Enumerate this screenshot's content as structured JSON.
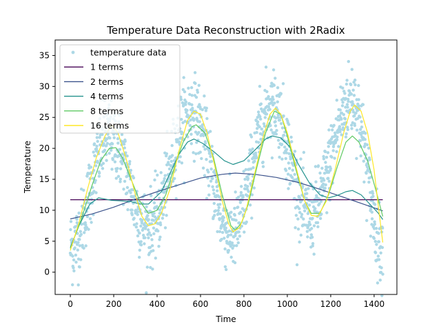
{
  "chart_data": {
    "type": "line",
    "title": "Temperature Data Reconstruction with 2Radix",
    "xlabel": "Time",
    "ylabel": "Temperature",
    "xlim": [
      -70,
      1505
    ],
    "ylim": [
      -3.6,
      37.5
    ],
    "xticks": [
      0,
      200,
      400,
      600,
      800,
      1000,
      1200,
      1400
    ],
    "yticks": [
      0,
      5,
      10,
      15,
      20,
      25,
      30,
      35
    ],
    "grid": false,
    "legend_position": "upper-left",
    "scatter": {
      "name": "temperature data",
      "color": "#add8e6",
      "x_range": [
        0,
        1440
      ],
      "points_approx": 1441,
      "shape": "4-cycle seasonal wave with noise",
      "trend_anchor_points": [
        {
          "x": 0,
          "y": 4
        },
        {
          "x": 180,
          "y": 22
        },
        {
          "x": 360,
          "y": 7
        },
        {
          "x": 560,
          "y": 26
        },
        {
          "x": 740,
          "y": 6
        },
        {
          "x": 930,
          "y": 27
        },
        {
          "x": 1100,
          "y": 9
        },
        {
          "x": 1300,
          "y": 28
        },
        {
          "x": 1440,
          "y": 4
        }
      ]
    },
    "series": [
      {
        "name": "1 terms",
        "color": "#440154",
        "points": [
          [
            0,
            11.7
          ],
          [
            1440,
            11.7
          ]
        ]
      },
      {
        "name": "2 terms",
        "color": "#3b528b",
        "points": [
          [
            0,
            8.6
          ],
          [
            100,
            9.4
          ],
          [
            200,
            10.5
          ],
          [
            300,
            11.8
          ],
          [
            400,
            13.0
          ],
          [
            500,
            14.1
          ],
          [
            600,
            15.2
          ],
          [
            700,
            15.8
          ],
          [
            760,
            16.0
          ],
          [
            850,
            15.8
          ],
          [
            950,
            15.3
          ],
          [
            1050,
            14.5
          ],
          [
            1150,
            13.4
          ],
          [
            1250,
            12.2
          ],
          [
            1350,
            11.0
          ],
          [
            1440,
            9.9
          ]
        ]
      },
      {
        "name": "4 terms",
        "color": "#21918c",
        "points": [
          [
            0,
            4.0
          ],
          [
            40,
            7.5
          ],
          [
            90,
            11.0
          ],
          [
            130,
            12.0
          ],
          [
            160,
            11.8
          ],
          [
            190,
            11.6
          ],
          [
            240,
            11.5
          ],
          [
            280,
            11.4
          ],
          [
            320,
            11.0
          ],
          [
            360,
            11.0
          ],
          [
            420,
            13.0
          ],
          [
            460,
            16.0
          ],
          [
            500,
            19.0
          ],
          [
            540,
            21.0
          ],
          [
            570,
            21.5
          ],
          [
            610,
            20.8
          ],
          [
            660,
            19.5
          ],
          [
            710,
            18.0
          ],
          [
            750,
            17.4
          ],
          [
            800,
            18.0
          ],
          [
            850,
            19.7
          ],
          [
            900,
            21.5
          ],
          [
            930,
            22.0
          ],
          [
            970,
            21.7
          ],
          [
            1010,
            20.3
          ],
          [
            1050,
            17.5
          ],
          [
            1100,
            14.5
          ],
          [
            1150,
            12.5
          ],
          [
            1190,
            12.0
          ],
          [
            1230,
            12.4
          ],
          [
            1270,
            13.0
          ],
          [
            1300,
            13.2
          ],
          [
            1340,
            12.5
          ],
          [
            1380,
            11.0
          ],
          [
            1420,
            9.5
          ],
          [
            1440,
            8.5
          ]
        ]
      },
      {
        "name": "8 terms",
        "color": "#5ec962",
        "points": [
          [
            0,
            3.8
          ],
          [
            50,
            8.5
          ],
          [
            100,
            14.0
          ],
          [
            140,
            18.0
          ],
          [
            180,
            20.0
          ],
          [
            210,
            20.1
          ],
          [
            240,
            18.5
          ],
          [
            280,
            15.0
          ],
          [
            320,
            11.5
          ],
          [
            360,
            9.5
          ],
          [
            400,
            10.0
          ],
          [
            440,
            12.5
          ],
          [
            480,
            17.0
          ],
          [
            520,
            21.0
          ],
          [
            560,
            23.5
          ],
          [
            580,
            23.8
          ],
          [
            620,
            22.5
          ],
          [
            660,
            18.5
          ],
          [
            700,
            12.5
          ],
          [
            740,
            7.5
          ],
          [
            760,
            6.8
          ],
          [
            790,
            8.0
          ],
          [
            820,
            11.0
          ],
          [
            860,
            17.0
          ],
          [
            900,
            22.5
          ],
          [
            940,
            26.0
          ],
          [
            970,
            25.5
          ],
          [
            1000,
            22.0
          ],
          [
            1040,
            16.5
          ],
          [
            1080,
            11.5
          ],
          [
            1110,
            9.5
          ],
          [
            1150,
            9.5
          ],
          [
            1190,
            12.5
          ],
          [
            1230,
            17.0
          ],
          [
            1270,
            21.0
          ],
          [
            1300,
            22.0
          ],
          [
            1330,
            21.0
          ],
          [
            1370,
            18.0
          ],
          [
            1410,
            13.0
          ],
          [
            1440,
            9.0
          ]
        ]
      },
      {
        "name": "16 terms",
        "color": "#fde725",
        "points": [
          [
            0,
            3.5
          ],
          [
            40,
            8.0
          ],
          [
            80,
            13.5
          ],
          [
            120,
            18.5
          ],
          [
            160,
            22.0
          ],
          [
            190,
            23.8
          ],
          [
            220,
            22.5
          ],
          [
            260,
            18.0
          ],
          [
            300,
            12.5
          ],
          [
            330,
            9.0
          ],
          [
            360,
            7.5
          ],
          [
            390,
            7.8
          ],
          [
            420,
            9.5
          ],
          [
            460,
            13.5
          ],
          [
            500,
            19.5
          ],
          [
            540,
            24.5
          ],
          [
            570,
            26.0
          ],
          [
            600,
            25.5
          ],
          [
            630,
            22.5
          ],
          [
            670,
            16.5
          ],
          [
            700,
            11.5
          ],
          [
            730,
            7.8
          ],
          [
            750,
            6.5
          ],
          [
            780,
            7.2
          ],
          [
            810,
            10.0
          ],
          [
            850,
            16.0
          ],
          [
            890,
            22.0
          ],
          [
            920,
            25.5
          ],
          [
            945,
            26.5
          ],
          [
            970,
            25.5
          ],
          [
            1000,
            22.5
          ],
          [
            1040,
            17.0
          ],
          [
            1080,
            11.5
          ],
          [
            1110,
            9.2
          ],
          [
            1140,
            9.0
          ],
          [
            1180,
            11.5
          ],
          [
            1220,
            16.5
          ],
          [
            1260,
            22.5
          ],
          [
            1290,
            26.0
          ],
          [
            1310,
            27.0
          ],
          [
            1340,
            26.0
          ],
          [
            1370,
            22.5
          ],
          [
            1400,
            16.5
          ],
          [
            1420,
            10.5
          ],
          [
            1440,
            4.8
          ]
        ]
      }
    ]
  }
}
